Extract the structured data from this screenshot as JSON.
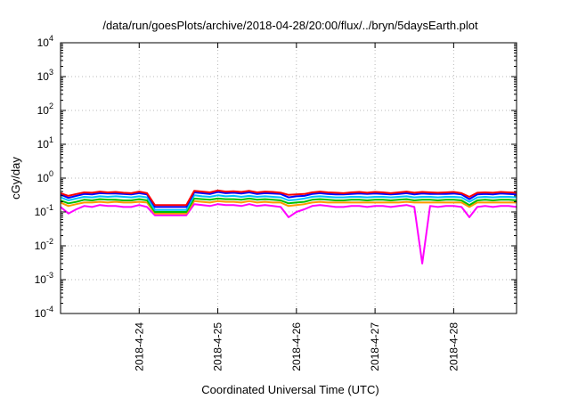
{
  "chart_data": {
    "type": "line",
    "title": "/data/run/goesPlots/archive/2018-04-28/20:00/flux/../bryn/5daysEarth.plot",
    "xlabel": "Coordinated Universal Time (UTC)",
    "ylabel": "cGy/day",
    "yscale": "log",
    "ylim": [
      0.0001,
      10000
    ],
    "xlim": [
      0,
      5.8
    ],
    "grid": true,
    "yticks": [
      {
        "value": 0.0001,
        "base": "10",
        "exp": "-4"
      },
      {
        "value": 0.001,
        "base": "10",
        "exp": "-3"
      },
      {
        "value": 0.01,
        "base": "10",
        "exp": "-2"
      },
      {
        "value": 0.1,
        "base": "10",
        "exp": "-1"
      },
      {
        "value": 1,
        "base": "10",
        "exp": "0"
      },
      {
        "value": 10,
        "base": "10",
        "exp": "1"
      },
      {
        "value": 100,
        "base": "10",
        "exp": "2"
      },
      {
        "value": 1000,
        "base": "10",
        "exp": "3"
      },
      {
        "value": 10000,
        "base": "10",
        "exp": "4"
      }
    ],
    "xticks": [
      {
        "value": 1,
        "label": "2018-4-24"
      },
      {
        "value": 2,
        "label": "2018-4-25"
      },
      {
        "value": 3,
        "label": "2018-4-26"
      },
      {
        "value": 4,
        "label": "2018-4-27"
      },
      {
        "value": 5,
        "label": "2018-4-28"
      }
    ],
    "x": [
      0.0,
      0.1,
      0.2,
      0.3,
      0.4,
      0.5,
      0.6,
      0.7,
      0.8,
      0.9,
      1.0,
      1.1,
      1.2,
      1.3,
      1.4,
      1.5,
      1.6,
      1.7,
      1.8,
      1.9,
      2.0,
      2.1,
      2.2,
      2.3,
      2.4,
      2.5,
      2.6,
      2.7,
      2.8,
      2.9,
      3.0,
      3.1,
      3.2,
      3.3,
      3.4,
      3.5,
      3.6,
      3.7,
      3.8,
      3.9,
      4.0,
      4.1,
      4.2,
      4.3,
      4.4,
      4.5,
      4.6,
      4.7,
      4.8,
      4.9,
      5.0,
      5.1,
      5.2,
      5.3,
      5.4,
      5.5,
      5.6,
      5.7,
      5.8
    ],
    "series": [
      {
        "color": "#ff0000",
        "values": [
          0.36,
          0.3,
          0.34,
          0.38,
          0.37,
          0.4,
          0.38,
          0.39,
          0.37,
          0.36,
          0.4,
          0.36,
          0.16,
          0.16,
          0.16,
          0.16,
          0.16,
          0.42,
          0.4,
          0.38,
          0.43,
          0.4,
          0.41,
          0.39,
          0.42,
          0.38,
          0.4,
          0.39,
          0.37,
          0.32,
          0.33,
          0.34,
          0.38,
          0.4,
          0.38,
          0.37,
          0.36,
          0.38,
          0.39,
          0.37,
          0.39,
          0.38,
          0.36,
          0.38,
          0.4,
          0.37,
          0.39,
          0.38,
          0.37,
          0.38,
          0.39,
          0.36,
          0.28,
          0.37,
          0.38,
          0.37,
          0.39,
          0.38,
          0.37
        ]
      },
      {
        "color": "#0000ff",
        "values": [
          0.33,
          0.26,
          0.3,
          0.34,
          0.33,
          0.36,
          0.35,
          0.35,
          0.34,
          0.33,
          0.36,
          0.33,
          0.14,
          0.14,
          0.14,
          0.14,
          0.14,
          0.38,
          0.36,
          0.34,
          0.39,
          0.36,
          0.37,
          0.35,
          0.38,
          0.34,
          0.36,
          0.35,
          0.34,
          0.27,
          0.29,
          0.3,
          0.34,
          0.36,
          0.34,
          0.33,
          0.33,
          0.34,
          0.35,
          0.34,
          0.35,
          0.34,
          0.33,
          0.34,
          0.36,
          0.33,
          0.35,
          0.34,
          0.34,
          0.34,
          0.35,
          0.33,
          0.24,
          0.33,
          0.34,
          0.33,
          0.35,
          0.34,
          0.33
        ]
      },
      {
        "color": "#00bfff",
        "values": [
          0.27,
          0.22,
          0.25,
          0.28,
          0.27,
          0.29,
          0.28,
          0.29,
          0.28,
          0.27,
          0.29,
          0.27,
          0.115,
          0.115,
          0.115,
          0.115,
          0.115,
          0.31,
          0.29,
          0.28,
          0.31,
          0.29,
          0.3,
          0.28,
          0.3,
          0.28,
          0.29,
          0.28,
          0.27,
          0.22,
          0.23,
          0.25,
          0.28,
          0.29,
          0.28,
          0.27,
          0.27,
          0.28,
          0.28,
          0.27,
          0.28,
          0.28,
          0.27,
          0.28,
          0.29,
          0.27,
          0.28,
          0.28,
          0.27,
          0.28,
          0.28,
          0.27,
          0.2,
          0.27,
          0.28,
          0.27,
          0.28,
          0.28,
          0.27
        ]
      },
      {
        "color": "#00c000",
        "values": [
          0.22,
          0.18,
          0.2,
          0.23,
          0.22,
          0.24,
          0.23,
          0.23,
          0.22,
          0.22,
          0.24,
          0.22,
          0.1,
          0.1,
          0.1,
          0.1,
          0.1,
          0.25,
          0.24,
          0.23,
          0.25,
          0.24,
          0.24,
          0.23,
          0.25,
          0.23,
          0.24,
          0.23,
          0.22,
          0.18,
          0.19,
          0.2,
          0.23,
          0.24,
          0.23,
          0.22,
          0.22,
          0.23,
          0.23,
          0.22,
          0.23,
          0.23,
          0.22,
          0.23,
          0.24,
          0.22,
          0.23,
          0.23,
          0.22,
          0.23,
          0.23,
          0.22,
          0.16,
          0.22,
          0.23,
          0.22,
          0.23,
          0.23,
          0.22
        ]
      },
      {
        "color": "#ff9900",
        "values": [
          0.19,
          0.15,
          0.17,
          0.19,
          0.19,
          0.2,
          0.19,
          0.2,
          0.19,
          0.19,
          0.2,
          0.19,
          0.09,
          0.09,
          0.09,
          0.09,
          0.09,
          0.21,
          0.2,
          0.19,
          0.21,
          0.2,
          0.2,
          0.19,
          0.21,
          0.19,
          0.2,
          0.19,
          0.19,
          0.15,
          0.16,
          0.17,
          0.19,
          0.2,
          0.19,
          0.19,
          0.19,
          0.19,
          0.19,
          0.19,
          0.19,
          0.19,
          0.19,
          0.19,
          0.2,
          0.19,
          0.19,
          0.19,
          0.19,
          0.19,
          0.19,
          0.19,
          0.14,
          0.19,
          0.19,
          0.19,
          0.19,
          0.19,
          0.19
        ]
      },
      {
        "color": "#ff00ff",
        "values": [
          0.14,
          0.09,
          0.12,
          0.15,
          0.14,
          0.16,
          0.15,
          0.15,
          0.14,
          0.14,
          0.16,
          0.14,
          0.08,
          0.08,
          0.08,
          0.08,
          0.08,
          0.17,
          0.16,
          0.15,
          0.17,
          0.16,
          0.16,
          0.15,
          0.17,
          0.15,
          0.16,
          0.15,
          0.14,
          0.07,
          0.1,
          0.12,
          0.15,
          0.16,
          0.15,
          0.14,
          0.14,
          0.15,
          0.15,
          0.14,
          0.15,
          0.15,
          0.14,
          0.15,
          0.16,
          0.14,
          0.003,
          0.15,
          0.14,
          0.15,
          0.15,
          0.14,
          0.07,
          0.14,
          0.15,
          0.14,
          0.15,
          0.15,
          0.14
        ]
      }
    ]
  }
}
